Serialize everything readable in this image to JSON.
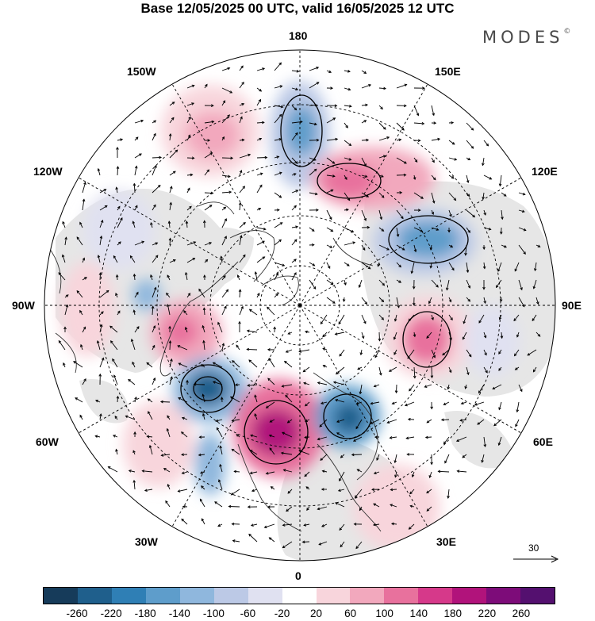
{
  "title": "Base 12/05/2025 00 UTC, valid 16/05/2025 12 UTC",
  "brand": "MODES",
  "brand_mark": "©",
  "longitude_labels": {
    "top": "180",
    "bottom": "0",
    "left": "90W",
    "right": "90E",
    "upper_left_outer": "150W",
    "upper_right_outer": "150E",
    "upper_left_inner": "120W",
    "upper_right_inner": "120E",
    "lower_left_inner": "60W",
    "lower_right_inner": "60E",
    "lower_left_outer": "30W",
    "lower_right_outer": "30E"
  },
  "reference_vector": {
    "value": "30"
  },
  "colorbar": {
    "labels": [
      "-260",
      "-220",
      "-180",
      "-140",
      "-100",
      "-60",
      "-20",
      "20",
      "60",
      "100",
      "140",
      "180",
      "220",
      "260"
    ],
    "colors": [
      "#163b5a",
      "#1f5f8c",
      "#2f7fb5",
      "#5e9dcb",
      "#8fb7dd",
      "#bcc9e6",
      "#e0e1f1",
      "#ffffff",
      "#f8d5dc",
      "#f2a8bd",
      "#e8719d",
      "#d6398a",
      "#b1137b",
      "#7d0c79",
      "#54106f"
    ]
  },
  "map_colors": {
    "land_background": "#e8e8e8",
    "ocean_background": "#ffffff",
    "coastline": "#333333",
    "grid": "#000000",
    "wind_arrow": "#000000",
    "contour": "#000000"
  }
}
